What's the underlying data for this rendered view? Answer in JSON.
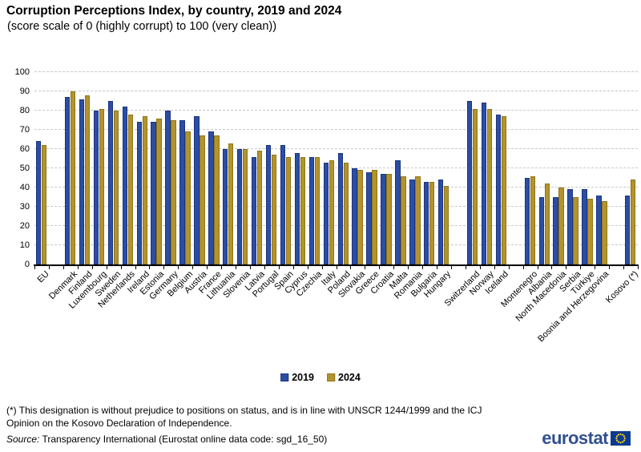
{
  "title": "Corruption Perceptions Index, by country, 2019 and 2024",
  "subtitle": "(score scale of 0 (highly corrupt) to 100 (very clean))",
  "legend": {
    "items": [
      {
        "label": "2019",
        "color": "#2B4EA3",
        "border": "#1B3380"
      },
      {
        "label": "2024",
        "color": "#B3932C",
        "border": "#8F7518"
      }
    ]
  },
  "footnote_line1": "(*) This designation is without prejudice to positions on status, and is in line with UNSCR 1244/1999 and the ICJ",
  "footnote_line2": "Opinion on the Kosovo Declaration of Independence.",
  "source_prefix": "Source:",
  "source_text": " Transparency International  (Eurostat online data code: sgd_16_50)",
  "logo_text": "eurostat",
  "chart_data": {
    "type": "bar",
    "title": "Corruption Perceptions Index, by country, 2019 and 2024",
    "subtitle": "(score scale of 0 (highly corrupt) to 100 (very clean))",
    "ylabel": "",
    "xlabel": "",
    "ylim": [
      0,
      100
    ],
    "yticks": [
      0,
      10,
      20,
      30,
      40,
      50,
      60,
      70,
      80,
      90,
      100
    ],
    "grid": "horizontal-dashed",
    "legend_position": "bottom",
    "categories": [
      "EU",
      "Denmark",
      "Finland",
      "Luxembourg",
      "Sweden",
      "Netherlands",
      "Ireland",
      "Estonia",
      "Germany",
      "Belgium",
      "Austria",
      "France",
      "Lithuania",
      "Slovenia",
      "Latvia",
      "Portugal",
      "Spain",
      "Cyprus",
      "Czechia",
      "Italy",
      "Poland",
      "Slovakia",
      "Greece",
      "Croatia",
      "Malta",
      "Romania",
      "Bulgaria",
      "Hungary",
      "Switzerland",
      "Norway",
      "Iceland",
      "Montenegro",
      "Albania",
      "North Macedonia",
      "Serbia",
      "Türkiye",
      "Bosnia and Herzegovina",
      "Kosovo (*)"
    ],
    "group_gaps_after": [
      0,
      27,
      30,
      36
    ],
    "series": [
      {
        "name": "2019",
        "color": "#2B4EA3",
        "values": [
          64,
          87,
          86,
          80,
          85,
          82,
          74,
          74,
          80,
          75,
          77,
          69,
          60,
          60,
          56,
          62,
          62,
          58,
          56,
          53,
          58,
          50,
          48,
          47,
          54,
          44,
          43,
          44,
          85,
          84,
          78,
          45,
          35,
          35,
          39,
          39,
          36,
          36
        ]
      },
      {
        "name": "2024",
        "color": "#B3932C",
        "values": [
          62,
          90,
          88,
          81,
          80,
          78,
          77,
          76,
          75,
          69,
          67,
          67,
          63,
          60,
          59,
          57,
          56,
          56,
          56,
          54,
          53,
          49,
          49,
          47,
          46,
          46,
          43,
          41,
          81,
          81,
          77,
          46,
          42,
          40,
          35,
          34,
          33,
          44
        ]
      }
    ]
  }
}
